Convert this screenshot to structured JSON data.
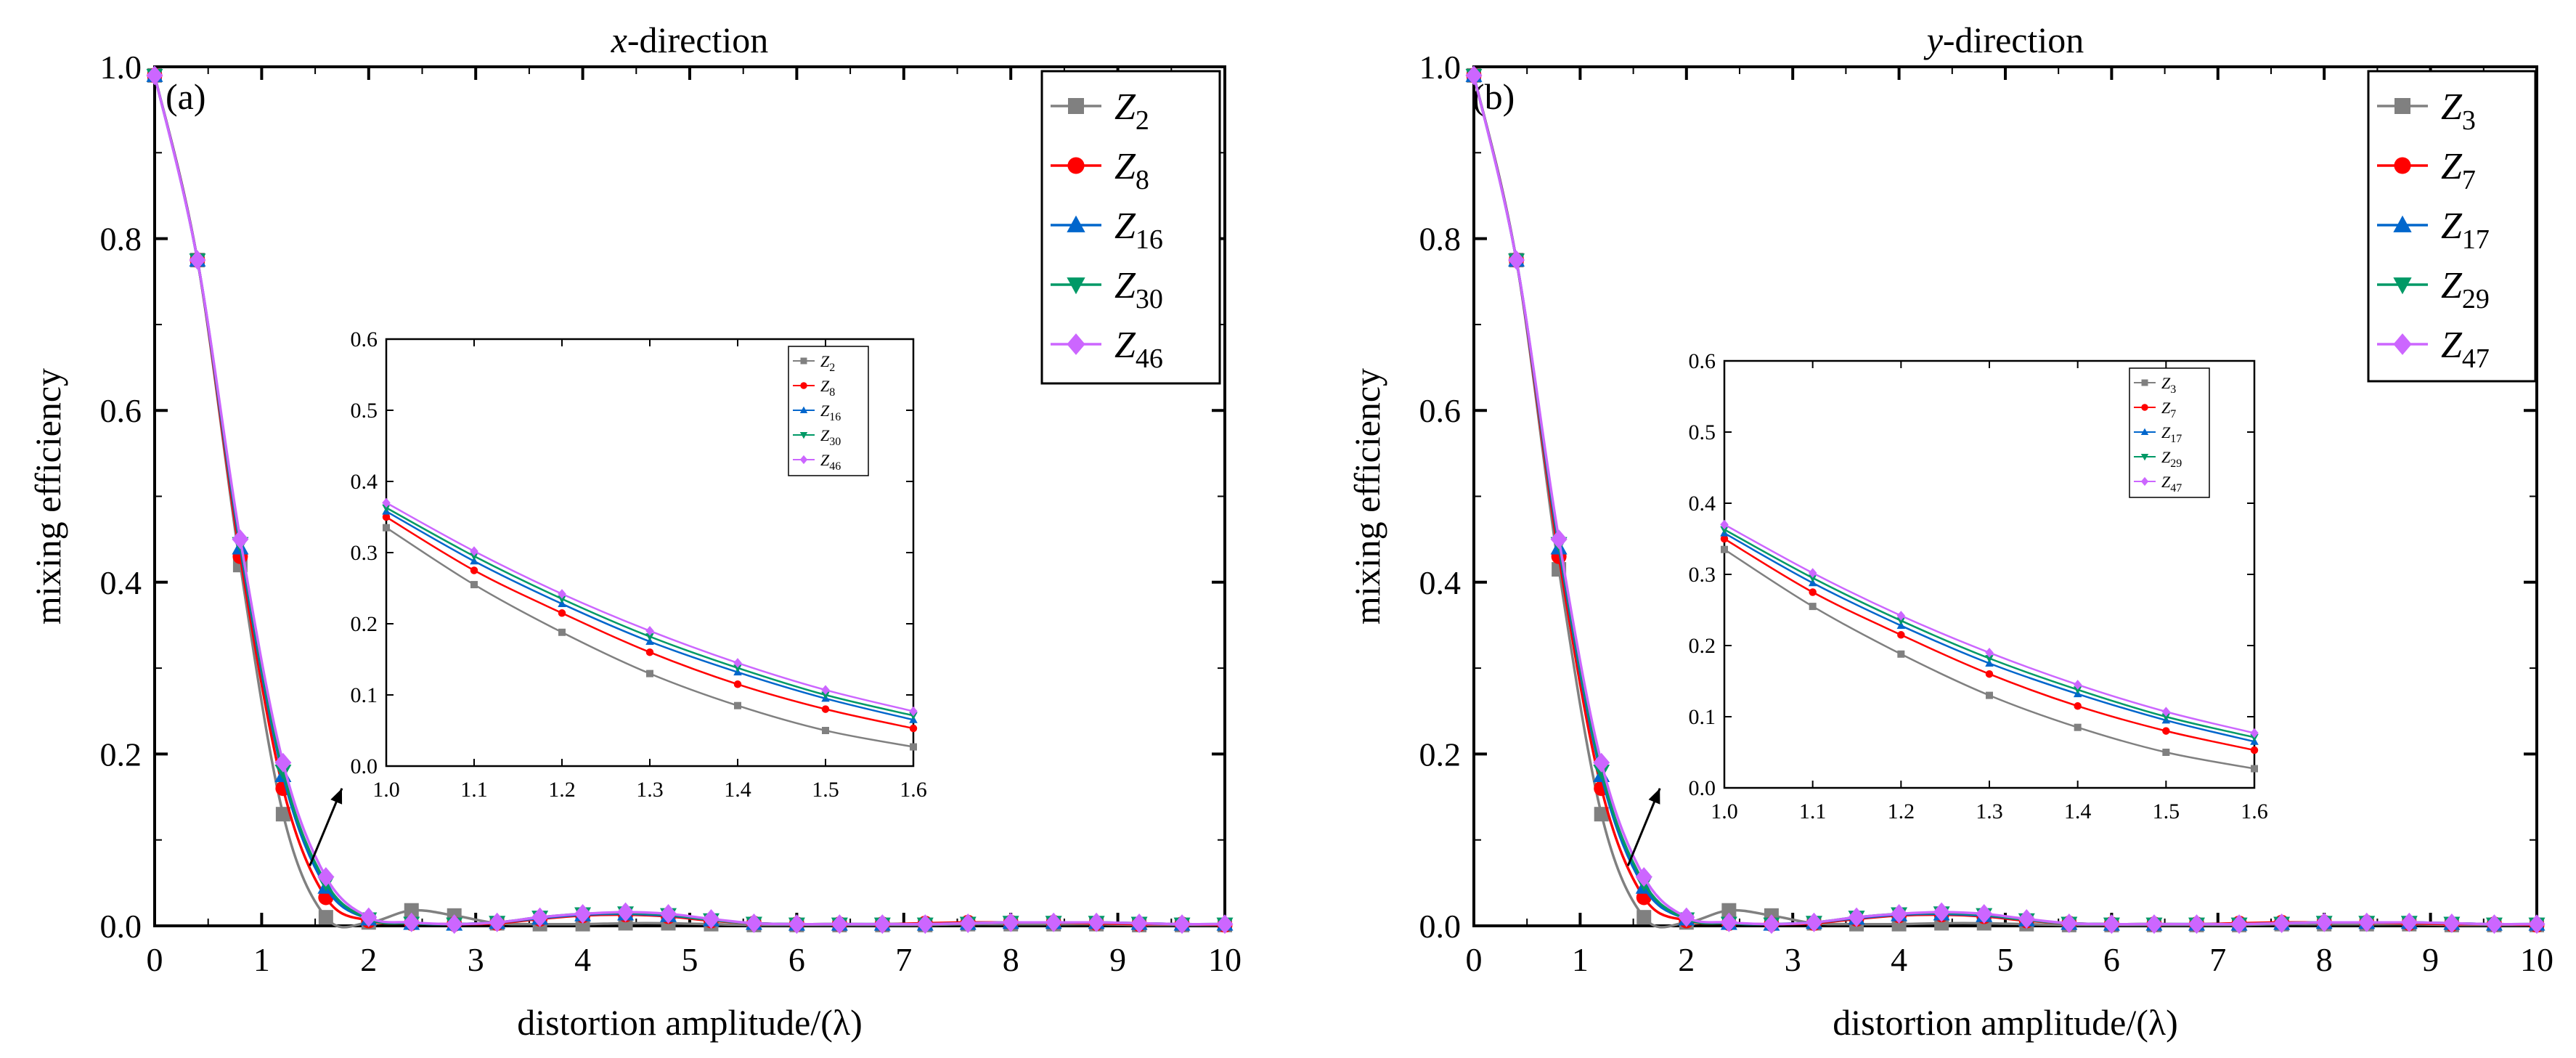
{
  "chart_data": [
    {
      "type": "line",
      "panel_label": "(a)",
      "title_var": "x",
      "title_rest": "-direction",
      "xlabel": "distortion amplitude/(λ)",
      "ylabel": "mixing efficiency",
      "xlim": [
        0,
        10
      ],
      "ylim": [
        0,
        1.0
      ],
      "xticks": [
        "0",
        "1",
        "2",
        "3",
        "4",
        "5",
        "6",
        "7",
        "8",
        "9",
        "10"
      ],
      "yticks": [
        "0.0",
        "0.2",
        "0.4",
        "0.6",
        "0.8",
        "1.0"
      ],
      "x": [
        0,
        0.4,
        0.8,
        1.2,
        1.6,
        2.0,
        2.4,
        2.8,
        3.2,
        3.6,
        4.0,
        4.4,
        4.8,
        5.2,
        5.6,
        6.0,
        6.4,
        6.8,
        7.2,
        7.6,
        8.0,
        8.4,
        8.8,
        9.2,
        9.6,
        10.0
      ],
      "series": [
        {
          "name": "Z",
          "sub": "2",
          "color": "#808080",
          "marker": "square",
          "values": [
            0.99,
            0.775,
            0.42,
            0.13,
            0.01,
            0.004,
            0.018,
            0.012,
            0.003,
            0.002,
            0.002,
            0.003,
            0.003,
            0.002,
            0.001,
            0.001,
            0.001,
            0.001,
            0.001,
            0.002,
            0.002,
            0.002,
            0.002,
            0.001,
            0.001,
            0.001
          ]
        },
        {
          "name": "Z",
          "sub": "8",
          "color": "#ff0000",
          "marker": "circle",
          "values": [
            0.99,
            0.775,
            0.43,
            0.16,
            0.033,
            0.006,
            0.003,
            0.002,
            0.003,
            0.008,
            0.012,
            0.013,
            0.011,
            0.006,
            0.003,
            0.002,
            0.002,
            0.002,
            0.003,
            0.004,
            0.004,
            0.004,
            0.003,
            0.002,
            0.002,
            0.001
          ]
        },
        {
          "name": "Z",
          "sub": "16",
          "color": "#0066cc",
          "marker": "triangle-up",
          "values": [
            0.99,
            0.775,
            0.44,
            0.175,
            0.045,
            0.008,
            0.003,
            0.002,
            0.004,
            0.009,
            0.013,
            0.014,
            0.012,
            0.007,
            0.003,
            0.002,
            0.002,
            0.002,
            0.002,
            0.003,
            0.004,
            0.004,
            0.004,
            0.003,
            0.002,
            0.002
          ]
        },
        {
          "name": "Z",
          "sub": "30",
          "color": "#009966",
          "marker": "triangle-down",
          "values": [
            0.99,
            0.775,
            0.445,
            0.18,
            0.05,
            0.008,
            0.003,
            0.002,
            0.004,
            0.01,
            0.014,
            0.015,
            0.013,
            0.007,
            0.003,
            0.002,
            0.002,
            0.002,
            0.002,
            0.003,
            0.004,
            0.004,
            0.004,
            0.003,
            0.002,
            0.002
          ]
        },
        {
          "name": "Z",
          "sub": "46",
          "color": "#cc66ff",
          "marker": "diamond",
          "values": [
            0.99,
            0.775,
            0.45,
            0.19,
            0.057,
            0.01,
            0.004,
            0.002,
            0.004,
            0.01,
            0.014,
            0.016,
            0.014,
            0.008,
            0.003,
            0.002,
            0.002,
            0.002,
            0.002,
            0.003,
            0.004,
            0.004,
            0.004,
            0.003,
            0.002,
            0.002
          ]
        }
      ],
      "inset": {
        "xlim": [
          1.0,
          1.6
        ],
        "ylim": [
          0,
          0.6
        ],
        "xticks": [
          "1.0",
          "1.1",
          "1.2",
          "1.3",
          "1.4",
          "1.5",
          "1.6"
        ],
        "yticks": [
          "0.0",
          "0.1",
          "0.2",
          "0.3",
          "0.4",
          "0.5",
          "0.6"
        ],
        "x": [
          1.0,
          1.1,
          1.2,
          1.3,
          1.4,
          1.5,
          1.6
        ],
        "series": [
          [
            0.335,
            0.255,
            0.188,
            0.13,
            0.085,
            0.05,
            0.027
          ],
          [
            0.35,
            0.275,
            0.215,
            0.16,
            0.115,
            0.08,
            0.053
          ],
          [
            0.358,
            0.288,
            0.228,
            0.175,
            0.132,
            0.095,
            0.065
          ],
          [
            0.363,
            0.295,
            0.235,
            0.182,
            0.138,
            0.1,
            0.071
          ],
          [
            0.37,
            0.302,
            0.242,
            0.19,
            0.145,
            0.107,
            0.077
          ]
        ]
      }
    },
    {
      "type": "line",
      "panel_label": "(b)",
      "title_var": "y",
      "title_rest": "-direction",
      "xlabel": "distortion amplitude/(λ)",
      "ylabel": "mixing efficiency",
      "xlim": [
        0,
        10
      ],
      "ylim": [
        0,
        1.0
      ],
      "xticks": [
        "0",
        "1",
        "2",
        "3",
        "4",
        "5",
        "6",
        "7",
        "8",
        "9",
        "10"
      ],
      "yticks": [
        "0.0",
        "0.2",
        "0.4",
        "0.6",
        "0.8",
        "1.0"
      ],
      "x": [
        0,
        0.4,
        0.8,
        1.2,
        1.6,
        2.0,
        2.4,
        2.8,
        3.2,
        3.6,
        4.0,
        4.4,
        4.8,
        5.2,
        5.6,
        6.0,
        6.4,
        6.8,
        7.2,
        7.6,
        8.0,
        8.4,
        8.8,
        9.2,
        9.6,
        10.0
      ],
      "series": [
        {
          "name": "Z",
          "sub": "3",
          "color": "#808080",
          "marker": "square",
          "values": [
            0.99,
            0.775,
            0.415,
            0.13,
            0.01,
            0.004,
            0.018,
            0.012,
            0.003,
            0.002,
            0.002,
            0.003,
            0.003,
            0.002,
            0.001,
            0.001,
            0.001,
            0.001,
            0.001,
            0.002,
            0.002,
            0.002,
            0.002,
            0.001,
            0.001,
            0.001
          ]
        },
        {
          "name": "Z",
          "sub": "7",
          "color": "#ff0000",
          "marker": "circle",
          "values": [
            0.99,
            0.775,
            0.43,
            0.16,
            0.033,
            0.006,
            0.003,
            0.002,
            0.003,
            0.008,
            0.012,
            0.013,
            0.011,
            0.006,
            0.003,
            0.002,
            0.002,
            0.002,
            0.003,
            0.004,
            0.004,
            0.004,
            0.003,
            0.002,
            0.002,
            0.001
          ]
        },
        {
          "name": "Z",
          "sub": "17",
          "color": "#0066cc",
          "marker": "triangle-up",
          "values": [
            0.99,
            0.775,
            0.44,
            0.175,
            0.045,
            0.008,
            0.003,
            0.002,
            0.004,
            0.009,
            0.013,
            0.014,
            0.012,
            0.007,
            0.003,
            0.002,
            0.002,
            0.002,
            0.002,
            0.003,
            0.004,
            0.004,
            0.004,
            0.003,
            0.002,
            0.002
          ]
        },
        {
          "name": "Z",
          "sub": "29",
          "color": "#009966",
          "marker": "triangle-down",
          "values": [
            0.99,
            0.775,
            0.445,
            0.18,
            0.05,
            0.008,
            0.003,
            0.002,
            0.004,
            0.01,
            0.014,
            0.015,
            0.013,
            0.007,
            0.003,
            0.002,
            0.002,
            0.002,
            0.002,
            0.003,
            0.004,
            0.004,
            0.004,
            0.003,
            0.002,
            0.002
          ]
        },
        {
          "name": "Z",
          "sub": "47",
          "color": "#cc66ff",
          "marker": "diamond",
          "values": [
            0.99,
            0.775,
            0.45,
            0.19,
            0.057,
            0.01,
            0.004,
            0.002,
            0.004,
            0.01,
            0.014,
            0.016,
            0.014,
            0.008,
            0.003,
            0.002,
            0.002,
            0.002,
            0.002,
            0.003,
            0.004,
            0.004,
            0.004,
            0.003,
            0.002,
            0.002
          ]
        }
      ],
      "inset": {
        "xlim": [
          1.0,
          1.6
        ],
        "ylim": [
          0,
          0.6
        ],
        "xticks": [
          "1.0",
          "1.1",
          "1.2",
          "1.3",
          "1.4",
          "1.5",
          "1.6"
        ],
        "yticks": [
          "0.0",
          "0.1",
          "0.2",
          "0.3",
          "0.4",
          "0.5",
          "0.6"
        ],
        "x": [
          1.0,
          1.1,
          1.2,
          1.3,
          1.4,
          1.5,
          1.6
        ],
        "series": [
          [
            0.335,
            0.255,
            0.188,
            0.13,
            0.085,
            0.05,
            0.027
          ],
          [
            0.35,
            0.275,
            0.215,
            0.16,
            0.115,
            0.08,
            0.053
          ],
          [
            0.358,
            0.288,
            0.228,
            0.175,
            0.132,
            0.095,
            0.065
          ],
          [
            0.363,
            0.295,
            0.235,
            0.182,
            0.138,
            0.1,
            0.071
          ],
          [
            0.37,
            0.302,
            0.242,
            0.19,
            0.145,
            0.107,
            0.077
          ]
        ]
      }
    }
  ]
}
